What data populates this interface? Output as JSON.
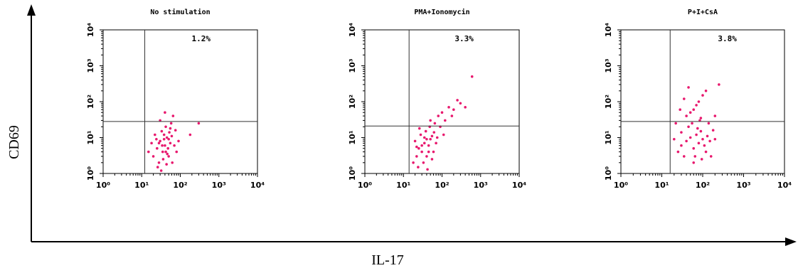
{
  "figure": {
    "y_label": "CD69",
    "x_label": "IL-17"
  },
  "chart_data": [
    {
      "type": "scatter",
      "title": "No stimulation",
      "annotation": "1.2%",
      "color": "#e8196e",
      "log_scale": true,
      "xlim": [
        1,
        10000
      ],
      "ylim": [
        1,
        10000
      ],
      "xticks": [
        {
          "value": 1,
          "label": "10⁰"
        },
        {
          "value": 10,
          "label": "10¹"
        },
        {
          "value": 100,
          "label": "10²"
        },
        {
          "value": 1000,
          "label": "10³"
        },
        {
          "value": 10000,
          "label": "10⁴"
        }
      ],
      "yticks": [
        {
          "value": 1,
          "label": "10⁰"
        },
        {
          "value": 10,
          "label": "10¹"
        },
        {
          "value": 100,
          "label": "10²"
        },
        {
          "value": 1000,
          "label": "10³"
        },
        {
          "value": 10000,
          "label": "10⁴"
        }
      ],
      "gate_x": 12,
      "gate_y": 28,
      "x": [
        20,
        25,
        30,
        35,
        40,
        45,
        50,
        55,
        22,
        28,
        33,
        38,
        42,
        48,
        60,
        70,
        80,
        18,
        26,
        32,
        36,
        44,
        52,
        58,
        65,
        30,
        40,
        24,
        46,
        55,
        75,
        90,
        15,
        62,
        34,
        38,
        42,
        28,
        50,
        300,
        180
      ],
      "values": [
        3,
        5,
        8,
        4,
        6,
        10,
        3,
        7,
        12,
        2,
        15,
        9,
        20,
        5,
        11,
        6,
        4,
        7,
        1.5,
        1.2,
        2.5,
        1.8,
        14,
        25,
        40,
        30,
        50,
        9,
        3.5,
        18,
        16,
        8,
        4,
        2,
        6,
        12,
        4,
        7,
        9,
        25,
        12
      ]
    },
    {
      "type": "scatter",
      "title": "PMA+Ionomycin",
      "annotation": "3.3%",
      "color": "#e8196e",
      "log_scale": true,
      "xlim": [
        1,
        10000
      ],
      "ylim": [
        1,
        10000
      ],
      "xticks": [
        {
          "value": 1,
          "label": "10⁰"
        },
        {
          "value": 10,
          "label": "10¹"
        },
        {
          "value": 100,
          "label": "10²"
        },
        {
          "value": 1000,
          "label": "10³"
        },
        {
          "value": 10000,
          "label": "10⁴"
        }
      ],
      "yticks": [
        {
          "value": 1,
          "label": "10⁰"
        },
        {
          "value": 10,
          "label": "10¹"
        },
        {
          "value": 100,
          "label": "10²"
        },
        {
          "value": 1000,
          "label": "10³"
        },
        {
          "value": 10000,
          "label": "10⁴"
        }
      ],
      "gate_x": 14,
      "gate_y": 21,
      "x": [
        18,
        22,
        25,
        30,
        35,
        40,
        45,
        50,
        28,
        33,
        38,
        20,
        24,
        42,
        55,
        60,
        70,
        26,
        48,
        65,
        80,
        100,
        150,
        200,
        300,
        400,
        120,
        90,
        35,
        30,
        40,
        45,
        55,
        22,
        62,
        75,
        110,
        50,
        180,
        250,
        600
      ],
      "values": [
        2,
        3,
        5,
        4,
        7,
        3,
        6,
        9,
        12,
        2,
        15,
        8,
        1.5,
        1.3,
        11,
        4,
        7,
        18,
        20,
        25,
        40,
        50,
        70,
        60,
        90,
        70,
        30,
        20,
        10,
        6,
        9,
        4,
        2.5,
        5.5,
        14,
        10,
        12,
        30,
        40,
        110,
        500
      ]
    },
    {
      "type": "scatter",
      "title": "P+I+CsA",
      "annotation": "3.8%",
      "color": "#e8196e",
      "log_scale": true,
      "xlim": [
        1,
        10000
      ],
      "ylim": [
        1,
        10000
      ],
      "xticks": [
        {
          "value": 1,
          "label": "10⁰"
        },
        {
          "value": 10,
          "label": "10¹"
        },
        {
          "value": 100,
          "label": "10²"
        },
        {
          "value": 1000,
          "label": "10³"
        },
        {
          "value": 10000,
          "label": "10⁴"
        }
      ],
      "yticks": [
        {
          "value": 1,
          "label": "10⁰"
        },
        {
          "value": 10,
          "label": "10¹"
        },
        {
          "value": 100,
          "label": "10²"
        },
        {
          "value": 1000,
          "label": "10³"
        },
        {
          "value": 10000,
          "label": "10⁴"
        }
      ],
      "gate_x": 16,
      "gate_y": 28,
      "x": [
        25,
        30,
        40,
        50,
        60,
        70,
        80,
        90,
        100,
        35,
        45,
        55,
        65,
        75,
        85,
        95,
        110,
        130,
        150,
        40,
        60,
        80,
        100,
        120,
        70,
        50,
        90,
        140,
        180,
        200,
        250,
        30,
        20,
        22,
        28,
        35,
        45,
        120,
        160,
        60,
        200
      ],
      "values": [
        4,
        6,
        8,
        10,
        5,
        12,
        7,
        15,
        9,
        3,
        20,
        25,
        3,
        18,
        30,
        2.5,
        6,
        11,
        8,
        40,
        60,
        100,
        150,
        200,
        80,
        50,
        35,
        25,
        16,
        40,
        300,
        14,
        9,
        25,
        60,
        120,
        250,
        4,
        3,
        2,
        9
      ]
    }
  ]
}
